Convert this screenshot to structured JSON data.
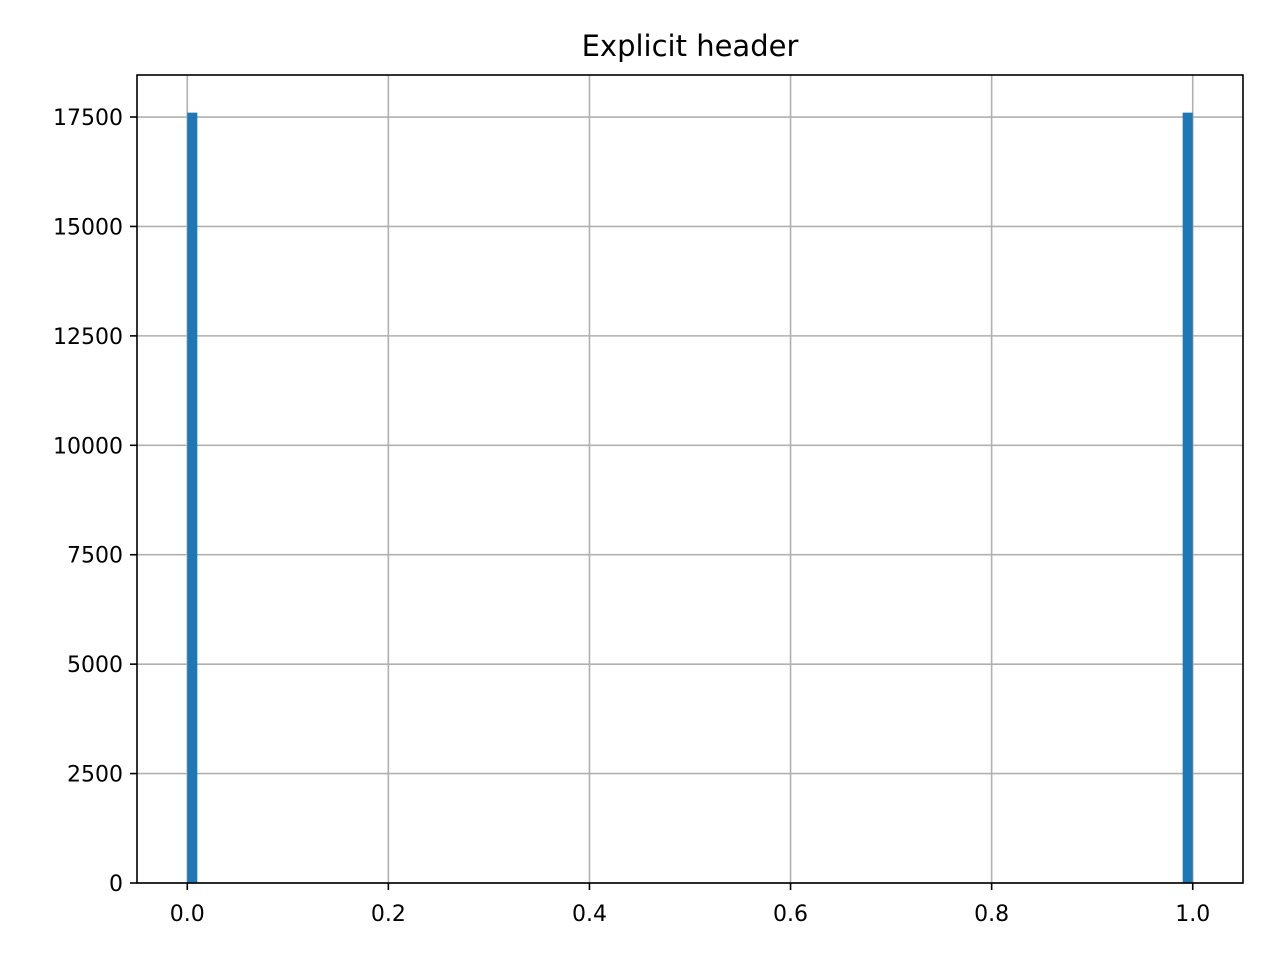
{
  "chart_data": {
    "type": "bar",
    "title": "Explicit header",
    "xlabel": "",
    "ylabel": "",
    "xlim": [
      -0.05,
      1.05
    ],
    "ylim": [
      0,
      18460
    ],
    "grid": true,
    "bar_color": "#1f77b4",
    "grid_color": "#b0b0b0",
    "bins": [
      {
        "x0": 0.0,
        "x1": 0.01,
        "value": 17600
      },
      {
        "x0": 0.99,
        "x1": 1.0,
        "value": 17600
      }
    ],
    "x_ticks": [
      {
        "value": 0.0,
        "label": "0.0"
      },
      {
        "value": 0.2,
        "label": "0.2"
      },
      {
        "value": 0.4,
        "label": "0.4"
      },
      {
        "value": 0.6,
        "label": "0.6"
      },
      {
        "value": 0.8,
        "label": "0.8"
      },
      {
        "value": 1.0,
        "label": "1.0"
      }
    ],
    "y_ticks": [
      {
        "value": 0,
        "label": "0"
      },
      {
        "value": 2500,
        "label": "2500"
      },
      {
        "value": 5000,
        "label": "5000"
      },
      {
        "value": 7500,
        "label": "7500"
      },
      {
        "value": 10000,
        "label": "10000"
      },
      {
        "value": 12500,
        "label": "12500"
      },
      {
        "value": 15000,
        "label": "15000"
      },
      {
        "value": 17500,
        "label": "17500"
      }
    ]
  }
}
